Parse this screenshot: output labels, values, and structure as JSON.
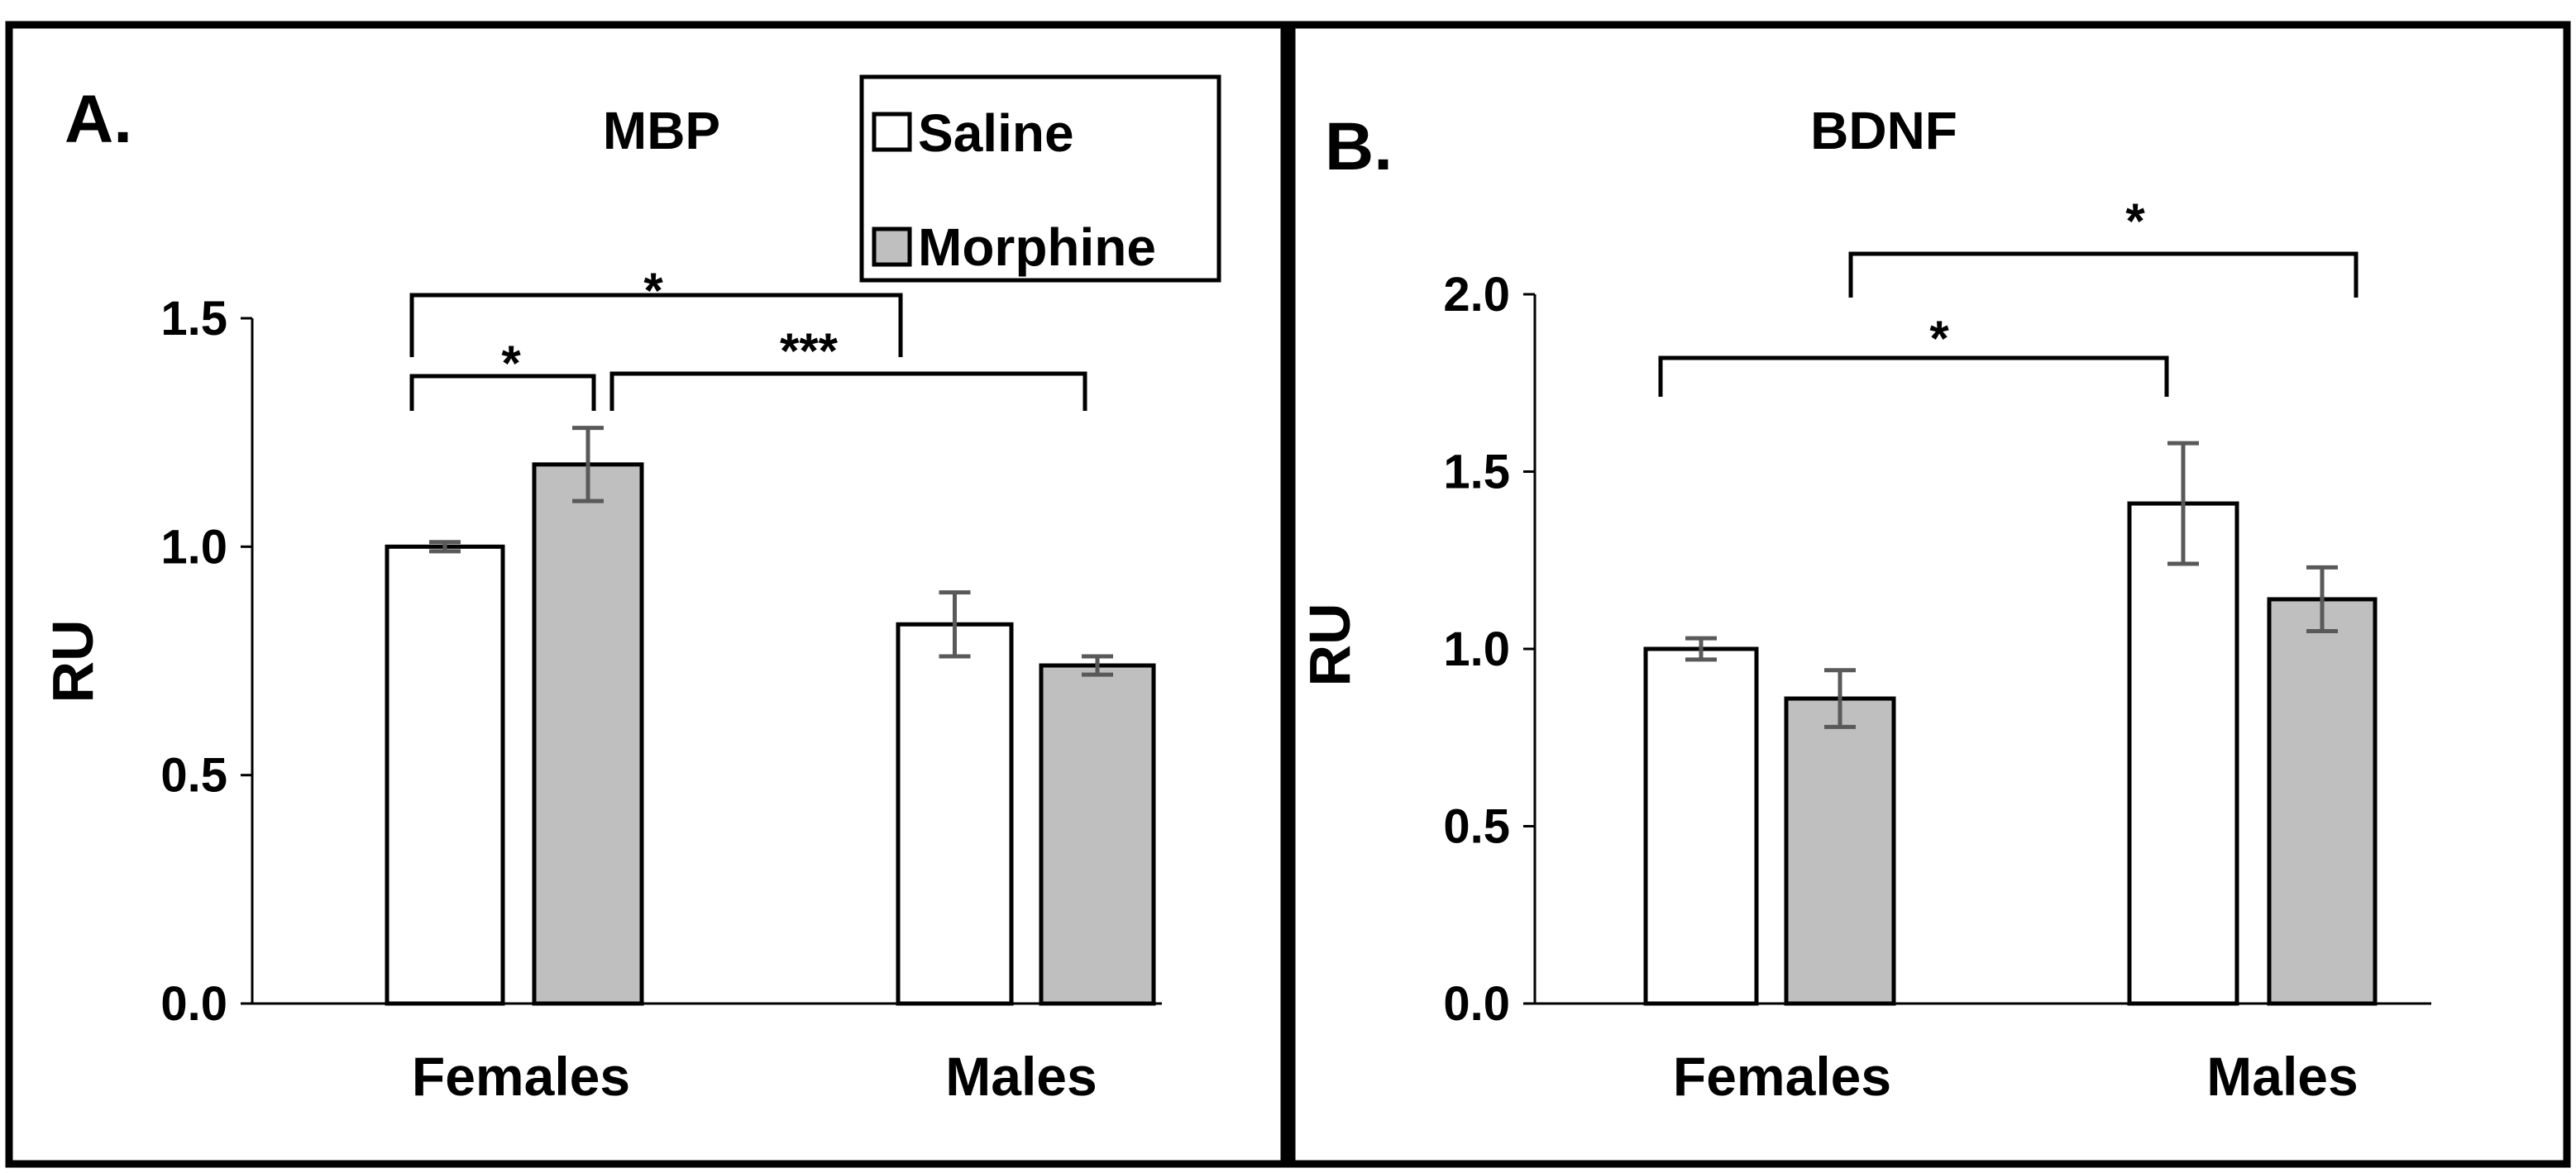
{
  "colors": {
    "saline_fill": "#ffffff",
    "morphine_fill": "#bfbfbf",
    "bar_stroke": "#000000",
    "error_bar": "#595959",
    "frame": "#000000"
  },
  "chart_data": [
    {
      "panel": "A.",
      "type": "bar",
      "title": "MBP",
      "xlabel": "",
      "ylabel": "RU",
      "ylim": [
        0,
        1.5
      ],
      "yticks": [
        "0.0",
        "0.5",
        "1.0",
        "1.5"
      ],
      "categories": [
        "Females",
        "Males"
      ],
      "series": [
        {
          "name": "Saline",
          "values": [
            1.0,
            0.83
          ],
          "errors": [
            0.01,
            0.07
          ]
        },
        {
          "name": "Morphine",
          "values": [
            1.18,
            0.74
          ],
          "errors": [
            0.08,
            0.02
          ]
        }
      ],
      "legend": {
        "position": "top-right",
        "entries": [
          "Saline",
          "Morphine"
        ]
      },
      "significance": [
        {
          "from": "Females Saline",
          "to": "Females Morphine",
          "label": "*"
        },
        {
          "from": "Females Saline",
          "to": "Males Saline",
          "label": "*"
        },
        {
          "from": "Females Morphine",
          "to": "Males Morphine",
          "label": "***"
        }
      ]
    },
    {
      "panel": "B.",
      "type": "bar",
      "title": "BDNF",
      "xlabel": "",
      "ylabel": "RU",
      "ylim": [
        0,
        2.0
      ],
      "yticks": [
        "0.0",
        "0.5",
        "1.0",
        "1.5",
        "2.0"
      ],
      "categories": [
        "Females",
        "Males"
      ],
      "series": [
        {
          "name": "Saline",
          "values": [
            1.0,
            1.41
          ],
          "errors": [
            0.03,
            0.17
          ]
        },
        {
          "name": "Morphine",
          "values": [
            0.86,
            1.14
          ],
          "errors": [
            0.08,
            0.09
          ]
        }
      ],
      "significance": [
        {
          "from": "Females Saline",
          "to": "Males Saline",
          "label": "*"
        },
        {
          "from": "Females Morphine",
          "to": "Males Morphine",
          "label": "*"
        }
      ]
    }
  ]
}
